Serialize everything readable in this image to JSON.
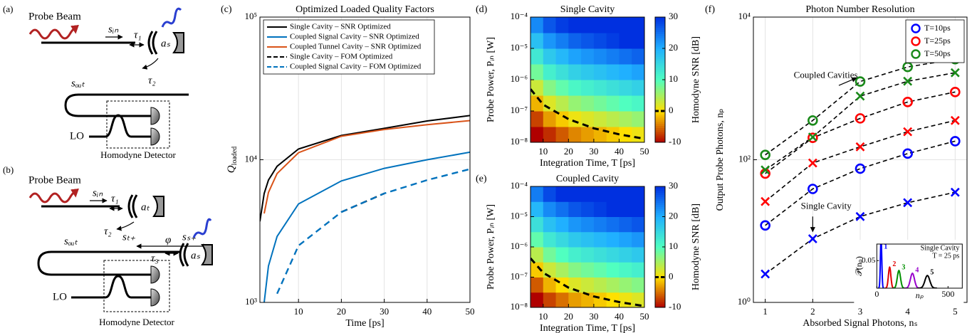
{
  "diagram_a": {
    "label": "(a)",
    "probe": "Probe Beam",
    "s_in": "sᵢₙ",
    "tau1": "τ₁",
    "a_s": "aₛ",
    "s_out": "sₒᵤₜ",
    "tau2": "τ₂",
    "lo": "LO",
    "detector": "Homodyne Detector"
  },
  "diagram_b": {
    "label": "(b)",
    "probe": "Probe Beam",
    "s_in": "sᵢₙ",
    "tau1": "τ₁",
    "a_t": "aₜ",
    "tau2": "τ₂",
    "s_t": "sₜ₊",
    "phi": "φ",
    "s_s": "sₛ₊",
    "s_out": "sₒᵤₜ",
    "tau3": "τ₃",
    "a_s": "aₛ",
    "lo": "LO",
    "detector": "Homodyne Detector"
  },
  "chart_data": [
    {
      "type": "line",
      "label": "(c)",
      "title": "Optimized Loaded Quality Factors",
      "xlabel": "Time [ps]",
      "ylabel": {
        "main": "Q",
        "sub": "loaded"
      },
      "x": [
        1,
        2,
        3,
        5,
        10,
        20,
        30,
        40,
        50
      ],
      "xlim": [
        1,
        50
      ],
      "ylim": [
        1000,
        100000
      ],
      "ylog": true,
      "grid": true,
      "legend": "upper left",
      "xticks": [
        10,
        20,
        30,
        40,
        50
      ],
      "yticks": [
        {
          "value": 1000,
          "label": "10³"
        },
        {
          "value": 10000,
          "label": "10⁴"
        },
        {
          "value": 100000,
          "label": "10⁵"
        }
      ],
      "series": [
        {
          "name": "Single Cavity – SNR Optimized",
          "color": "#000000",
          "dash": false,
          "values": [
            3700,
            5800,
            7200,
            9000,
            11900,
            14800,
            16600,
            18700,
            20400
          ]
        },
        {
          "name": "Coupled Signal Cavity – SNR Optimized",
          "color": "#0072bd",
          "dash": false,
          "values": [
            null,
            1000,
            1800,
            2900,
            4900,
            7100,
            8700,
            10000,
            11300
          ]
        },
        {
          "name": "Coupled Tunnel Cavity – SNR Optimized",
          "color": "#d95319",
          "dash": false,
          "values": [
            null,
            4200,
            5900,
            8000,
            11200,
            14600,
            16300,
            17600,
            18800
          ]
        },
        {
          "name": "Single Cavity – FOM Optimized",
          "color": "#000000",
          "dash": true,
          "values": [
            null,
            null,
            null,
            null,
            null,
            4300,
            5800,
            null,
            null
          ]
        },
        {
          "name": "Coupled Signal Cavity – FOM Optimized",
          "color": "#0072bd",
          "dash": true,
          "values": [
            null,
            null,
            null,
            1150,
            2500,
            4300,
            5800,
            7200,
            8600
          ]
        }
      ]
    },
    {
      "type": "heatmap",
      "label": "(d)",
      "title": "Single Cavity",
      "xlabel": "Integration Time, T [ps]",
      "ylabel": "Probe Power, Pᵢₙ [W]",
      "xlim": [
        5,
        50
      ],
      "ylim": [
        1e-08,
        0.0001
      ],
      "ylog": true,
      "xticks": [
        10,
        20,
        30,
        40,
        50
      ],
      "yticks": [
        {
          "value": 1e-08,
          "label": "10⁻⁸"
        },
        {
          "value": 1e-07,
          "label": "10⁻⁷"
        },
        {
          "value": 1e-06,
          "label": "10⁻⁶"
        },
        {
          "value": 1e-05,
          "label": "10⁻⁵"
        },
        {
          "value": 0.0001,
          "label": "10⁻⁴"
        }
      ],
      "x_edges": [
        5,
        10,
        15,
        20,
        25,
        30,
        35,
        40,
        45,
        50
      ],
      "y_edges": [
        1e-08,
        3.16e-08,
        1e-07,
        3.16e-07,
        1e-06,
        3.16e-06,
        1e-05,
        3.16e-05,
        0.0001
      ],
      "z": [
        [
          -12,
          -8,
          -6,
          -4,
          -3,
          -2,
          -1,
          0,
          1
        ],
        [
          -7,
          -3,
          -1,
          1,
          2,
          3,
          4,
          5,
          6
        ],
        [
          -2,
          2,
          4,
          6,
          7,
          8,
          9,
          10,
          11
        ],
        [
          3,
          7,
          9,
          11,
          12,
          13,
          14,
          15,
          16
        ],
        [
          8,
          12,
          14,
          16,
          17,
          18,
          19,
          20,
          21
        ],
        [
          13,
          17,
          19,
          21,
          22,
          23,
          24,
          25,
          26
        ],
        [
          18,
          22,
          24,
          26,
          27,
          28,
          29,
          30,
          31
        ],
        [
          23,
          27,
          29,
          31,
          32,
          33,
          34,
          35,
          36
        ]
      ],
      "clim": [
        -10,
        30
      ],
      "cticks": [
        -10,
        0,
        10,
        20,
        30
      ],
      "colorbar_label": "Homodyne SNR [dB]",
      "colormap": [
        "#b00000",
        "#ffe000",
        "#50ffc0",
        "#20b0ff",
        "#0030e0"
      ],
      "contour_level": 0,
      "contour": {
        "x": [
          5,
          10,
          20,
          30,
          40,
          50
        ],
        "y": [
          5e-07,
          1.6e-07,
          5.5e-08,
          2.8e-08,
          1.8e-08,
          1.3e-08
        ]
      }
    },
    {
      "type": "heatmap",
      "label": "(e)",
      "title": "Coupled Cavity",
      "xlabel": "Integration Time, T [ps]",
      "ylabel": "Probe Power, Pᵢₙ [W]",
      "xlim": [
        5,
        50
      ],
      "ylim": [
        1e-08,
        0.0001
      ],
      "ylog": true,
      "xticks": [
        10,
        20,
        30,
        40,
        50
      ],
      "yticks": [
        {
          "value": 1e-08,
          "label": "10⁻⁸"
        },
        {
          "value": 1e-07,
          "label": "10⁻⁷"
        },
        {
          "value": 1e-06,
          "label": "10⁻⁶"
        },
        {
          "value": 1e-05,
          "label": "10⁻⁵"
        },
        {
          "value": 0.0001,
          "label": "10⁻⁴"
        }
      ],
      "x_edges": [
        5,
        10,
        15,
        20,
        25,
        30,
        35,
        40,
        45,
        50
      ],
      "y_edges": [
        1e-08,
        3.16e-08,
        1e-07,
        3.16e-07,
        1e-06,
        3.16e-06,
        1e-05,
        3.16e-05,
        0.0001
      ],
      "z": [
        [
          -11,
          -7,
          -5,
          -3,
          -2,
          -1,
          0,
          1,
          2
        ],
        [
          -6,
          -2,
          0,
          2,
          3,
          4,
          5,
          6,
          7
        ],
        [
          -1,
          3,
          5,
          7,
          8,
          9,
          10,
          11,
          12
        ],
        [
          4,
          8,
          10,
          12,
          13,
          14,
          15,
          16,
          17
        ],
        [
          9,
          13,
          15,
          17,
          18,
          19,
          20,
          21,
          22
        ],
        [
          14,
          18,
          20,
          22,
          23,
          24,
          25,
          26,
          27
        ],
        [
          19,
          23,
          25,
          27,
          28,
          29,
          30,
          31,
          32
        ],
        [
          24,
          28,
          30,
          32,
          33,
          34,
          35,
          36,
          37
        ]
      ],
      "clim": [
        -10,
        30
      ],
      "cticks": [
        -10,
        0,
        10,
        20,
        30
      ],
      "colorbar_label": "Homodyne SNR [dB]",
      "colormap": [
        "#b00000",
        "#ffe000",
        "#50ffc0",
        "#20b0ff",
        "#0030e0"
      ],
      "contour_level": 0,
      "contour": {
        "x": [
          5,
          10,
          20,
          30,
          40,
          50
        ],
        "y": [
          4.2e-07,
          1.4e-07,
          4.5e-08,
          2.3e-08,
          1.5e-08,
          1.1e-08
        ]
      }
    },
    {
      "type": "scatter",
      "label": "(f)",
      "title": "Photon Number Resolution",
      "xlabel": "Absorbed Signal Photons, nₛ",
      "ylabel": "Output Probe Photons, nₚ",
      "x": [
        1,
        2,
        3,
        4,
        5
      ],
      "xlim": [
        0.75,
        5.25
      ],
      "ylim": [
        1,
        10000
      ],
      "ylog": true,
      "grid": true,
      "legend": "upper right",
      "xticks": [
        1,
        2,
        3,
        4,
        5
      ],
      "yticks": [
        {
          "value": 1,
          "label": "10⁰"
        },
        {
          "value": 100,
          "label": "10²"
        },
        {
          "value": 10000,
          "label": "10⁴"
        }
      ],
      "series": [
        {
          "name": "T=10ps",
          "color": "#0000ff",
          "coupled": [
            12,
            39,
            75,
            122,
            182
          ],
          "single": [
            2.5,
            7.8,
            16,
            25,
            35
          ]
        },
        {
          "name": "T=25ps",
          "color": "#ff0000",
          "coupled": [
            64,
            203,
            380,
            645,
            890
          ],
          "single": [
            26,
            90,
            152,
            247,
            355
          ]
        },
        {
          "name": "T=50ps",
          "color": "#1a8a1a",
          "coupled": [
            117,
            355,
            1250,
            2000,
            2570
          ],
          "single": [
            72,
            208,
            780,
            1260,
            1660
          ]
        }
      ],
      "annotations": {
        "coupled": "Coupled Cavities",
        "single": "Single Cavity"
      },
      "inset": {
        "ylabel": "𝒫(nₚ)",
        "xlabel": "nₚ",
        "xlim": [
          0,
          600
        ],
        "ylim": [
          0,
          0.08
        ],
        "xticks": [
          0,
          500
        ],
        "yticks": [
          0.05
        ],
        "notes": [
          "Single Cavity",
          "T = 25 ps"
        ],
        "peak_labels": [
          "1",
          "2",
          "3",
          "4",
          "5"
        ],
        "centers": [
          30,
          90,
          155,
          250,
          355
        ],
        "heights": [
          0.09,
          0.038,
          0.032,
          0.027,
          0.023
        ],
        "colors": [
          "#0000ff",
          "#e00000",
          "#009000",
          "#9900cc",
          "#000000"
        ]
      }
    }
  ]
}
